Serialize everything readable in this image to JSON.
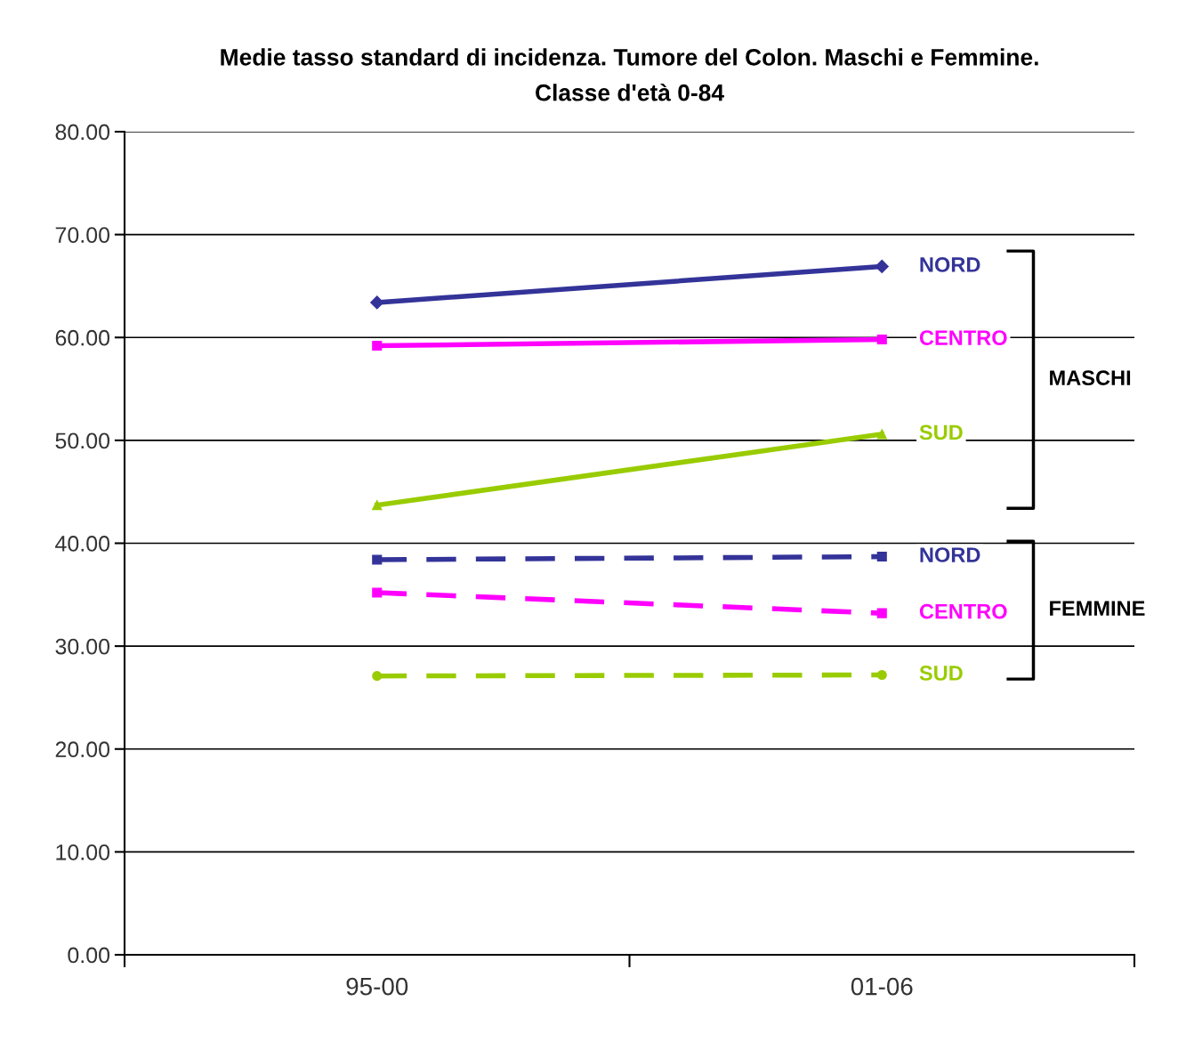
{
  "chart_data": {
    "type": "line",
    "title": "Medie tasso standard di incidenza. Tumore del Colon. Maschi e Femmine.\nClasse d'età 0-84",
    "categories": [
      "95-00",
      "01-06"
    ],
    "series": [
      {
        "name": "NORD",
        "color": "#333399",
        "values": [
          63.4,
          66.9
        ],
        "marker": "diamond",
        "line_style": "solid"
      },
      {
        "name": "CENTRO",
        "color": "#ff00ff",
        "values": [
          59.2,
          59.8
        ],
        "marker": "square",
        "line_style": "solid"
      },
      {
        "name": "SUD",
        "color": "#99cc00",
        "values": [
          43.7,
          50.6
        ],
        "marker": "triangle",
        "line_style": "solid"
      },
      {
        "name": "NORD",
        "color": "#333399",
        "values": [
          38.4,
          38.7
        ],
        "marker": "square",
        "line_style": "dashed"
      },
      {
        "name": "CENTRO",
        "color": "#ff00ff",
        "values": [
          35.2,
          33.2
        ],
        "marker": "square",
        "line_style": "dashed"
      },
      {
        "name": "SUD",
        "color": "#99cc00",
        "values": [
          27.1,
          27.2
        ],
        "marker": "circle",
        "line_style": "dashed"
      }
    ],
    "annotations": [
      "MASCHI",
      "FEMMINE"
    ],
    "ylim": [
      0,
      80
    ],
    "yticks": [
      {
        "value": 0,
        "label": "0.00"
      },
      {
        "value": 10,
        "label": "10.00"
      },
      {
        "value": 20,
        "label": "20.00"
      },
      {
        "value": 30,
        "label": "30.00"
      },
      {
        "value": 40,
        "label": "40.00"
      },
      {
        "value": 50,
        "label": "50.00"
      },
      {
        "value": 60,
        "label": "60.00"
      },
      {
        "value": 70,
        "label": "70.00"
      },
      {
        "value": 80,
        "label": "80.00"
      }
    ],
    "grid": "y",
    "legend": false
  }
}
